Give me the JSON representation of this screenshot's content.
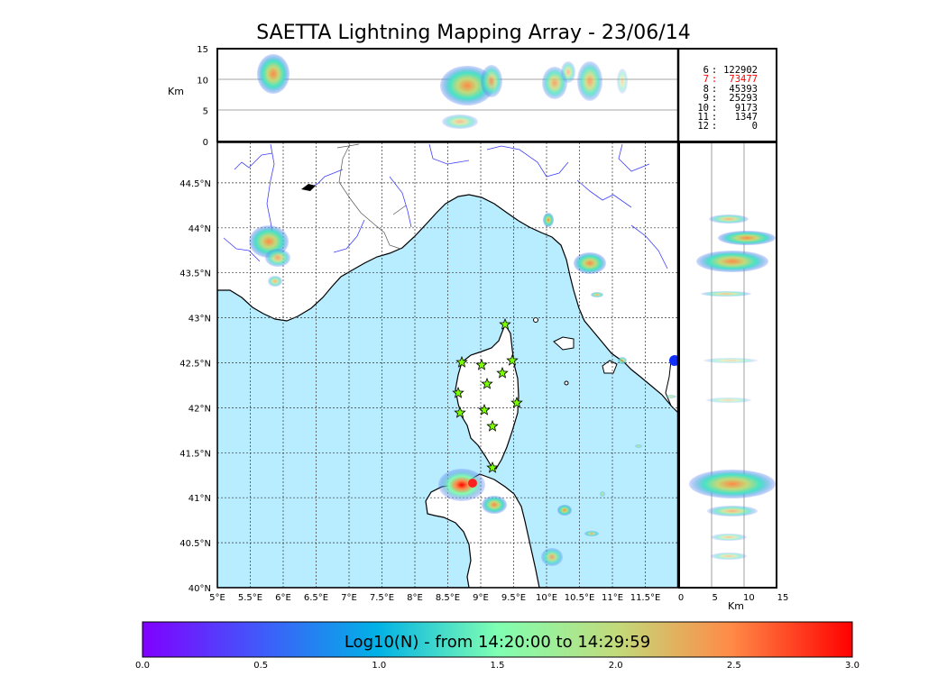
{
  "title": "SAETTA Lightning Mapping Array - 23/06/14",
  "top_panel": {
    "ylabel": "Km",
    "yticks": [
      "15",
      "10",
      "5",
      "0"
    ]
  },
  "right_panel": {
    "xlabel": "Km",
    "xticks": [
      "0",
      "5",
      "10",
      "15"
    ]
  },
  "map": {
    "lon_ticks": [
      "5°E",
      "5.5°E",
      "6°E",
      "6.5°E",
      "7°E",
      "7.5°E",
      "8°E",
      "8.5°E",
      "9°E",
      "9.5°E",
      "10°E",
      "10.5°E",
      "11°E",
      "11.5°E"
    ],
    "lat_ticks": [
      "44.5°N",
      "44°N",
      "43.5°N",
      "43°N",
      "42.5°N",
      "42°N",
      "41.5°N",
      "41°N",
      "40.5°N",
      "40°N"
    ],
    "sea_color": "#b8ecff",
    "station_color": "#7cfc00"
  },
  "legend": [
    {
      "level": "6",
      "count": "122902",
      "color": "#000000"
    },
    {
      "level": "7",
      "count": "73477",
      "color": "#ff0000"
    },
    {
      "level": "8",
      "count": "45393",
      "color": "#000000"
    },
    {
      "level": "9",
      "count": "25293",
      "color": "#000000"
    },
    {
      "level": "10",
      "count": "9173",
      "color": "#000000"
    },
    {
      "level": "11",
      "count": "1347",
      "color": "#000000"
    },
    {
      "level": "12",
      "count": "0",
      "color": "#000000"
    }
  ],
  "colorbar": {
    "label": "Log10(N) - from 14:20:00 to 14:29:59",
    "ticks": [
      "0.0",
      "0.5",
      "1.0",
      "1.5",
      "2.0",
      "2.5",
      "3.0"
    ],
    "range": [
      0,
      3
    ],
    "colormap": "rainbow"
  }
}
